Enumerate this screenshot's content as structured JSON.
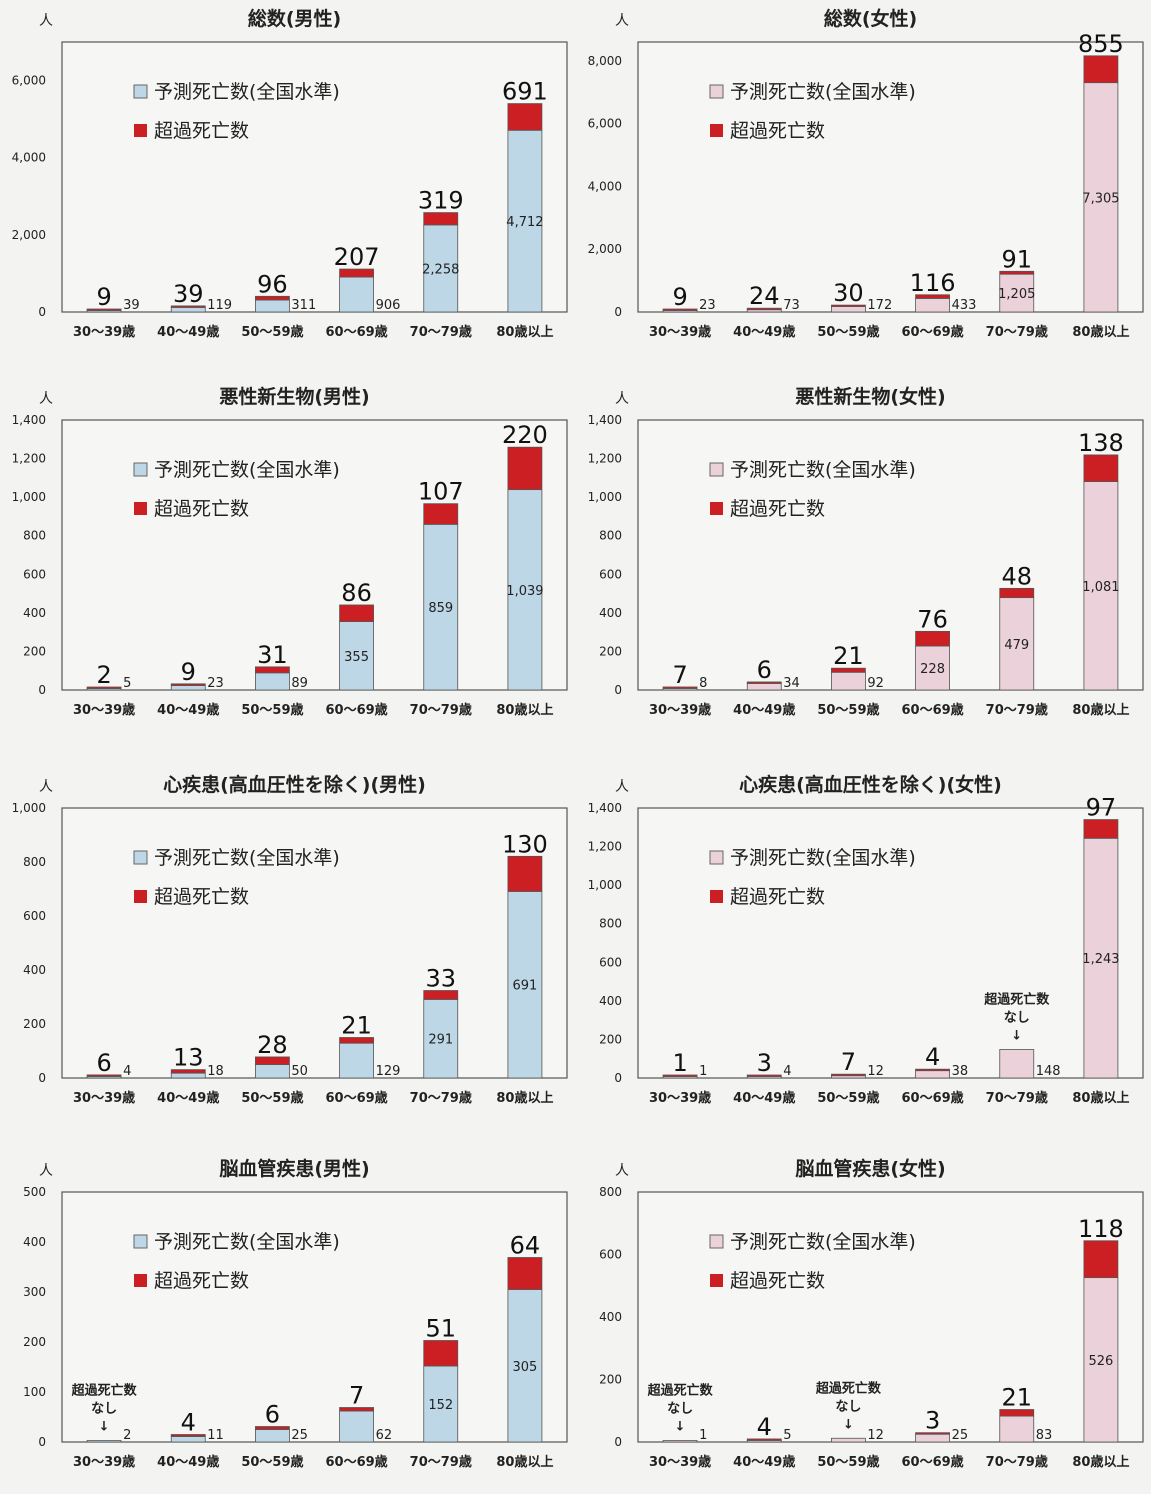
{
  "colors": {
    "excess": "#cc1f24",
    "male_predicted": "#bdd7e7",
    "female_predicted": "#ebd1da",
    "frame": "#555555",
    "background": "#f3f3f1"
  },
  "legend": {
    "predicted": "予測死亡数(全国水準)",
    "excess": "超過死亡数"
  },
  "unit_label": "人",
  "note": {
    "line1": "超過死亡数",
    "line2": "なし",
    "arrow": "↓"
  },
  "chart_data": [
    {
      "type": "bar",
      "stacked": true,
      "title": "総数(男性)",
      "gender": "male",
      "categories": [
        "30〜39歳",
        "40〜49歳",
        "50〜59歳",
        "60〜69歳",
        "70〜79歳",
        "80歳以上"
      ],
      "ylim": [
        0,
        7000
      ],
      "yticks": [
        0,
        2000,
        4000,
        6000
      ],
      "ytick_labels": [
        "0",
        "2,000",
        "4,000",
        "6,000"
      ],
      "series": [
        {
          "name": "予測死亡数(全国水準)",
          "values": [
            39,
            119,
            311,
            906,
            2258,
            4712
          ]
        },
        {
          "name": "超過死亡数",
          "values": [
            9,
            39,
            96,
            207,
            319,
            691
          ]
        }
      ],
      "predicted_labels": [
        "39",
        "119",
        "311",
        "906",
        "2,258",
        "4,712"
      ],
      "excess_labels": [
        "9",
        "39",
        "96",
        "207",
        "319",
        "691"
      ],
      "no_excess_notes": []
    },
    {
      "type": "bar",
      "stacked": true,
      "title": "総数(女性)",
      "gender": "female",
      "categories": [
        "30〜39歳",
        "40〜49歳",
        "50〜59歳",
        "60〜69歳",
        "70〜79歳",
        "80歳以上"
      ],
      "ylim": [
        0,
        8600
      ],
      "yticks": [
        0,
        2000,
        4000,
        6000,
        8000
      ],
      "ytick_labels": [
        "0",
        "2,000",
        "4,000",
        "6,000",
        "8,000"
      ],
      "series": [
        {
          "name": "予測死亡数(全国水準)",
          "values": [
            23,
            73,
            172,
            433,
            1205,
            7305
          ]
        },
        {
          "name": "超過死亡数",
          "values": [
            9,
            24,
            30,
            116,
            91,
            855
          ]
        }
      ],
      "predicted_labels": [
        "23",
        "73",
        "172",
        "433",
        "1,205",
        "7,305"
      ],
      "excess_labels": [
        "9",
        "24",
        "30",
        "116",
        "91",
        "855"
      ],
      "no_excess_notes": []
    },
    {
      "type": "bar",
      "stacked": true,
      "title": "悪性新生物(男性)",
      "gender": "male",
      "categories": [
        "30〜39歳",
        "40〜49歳",
        "50〜59歳",
        "60〜69歳",
        "70〜79歳",
        "80歳以上"
      ],
      "ylim": [
        0,
        1400
      ],
      "yticks": [
        0,
        200,
        400,
        600,
        800,
        1000,
        1200,
        1400
      ],
      "ytick_labels": [
        "0",
        "200",
        "400",
        "600",
        "800",
        "1,000",
        "1,200",
        "1,400"
      ],
      "series": [
        {
          "name": "予測死亡数(全国水準)",
          "values": [
            5,
            23,
            89,
            355,
            859,
            1039
          ]
        },
        {
          "name": "超過死亡数",
          "values": [
            2,
            9,
            31,
            86,
            107,
            220
          ]
        }
      ],
      "predicted_labels": [
        "5",
        "23",
        "89",
        "355",
        "859",
        "1,039"
      ],
      "excess_labels": [
        "2",
        "9",
        "31",
        "86",
        "107",
        "220"
      ],
      "no_excess_notes": []
    },
    {
      "type": "bar",
      "stacked": true,
      "title": "悪性新生物(女性)",
      "gender": "female",
      "categories": [
        "30〜39歳",
        "40〜49歳",
        "50〜59歳",
        "60〜69歳",
        "70〜79歳",
        "80歳以上"
      ],
      "ylim": [
        0,
        1400
      ],
      "yticks": [
        0,
        200,
        400,
        600,
        800,
        1000,
        1200,
        1400
      ],
      "ytick_labels": [
        "0",
        "200",
        "400",
        "600",
        "800",
        "1,000",
        "1,200",
        "1,400"
      ],
      "series": [
        {
          "name": "予測死亡数(全国水準)",
          "values": [
            8,
            34,
            92,
            228,
            479,
            1081
          ]
        },
        {
          "name": "超過死亡数",
          "values": [
            7,
            6,
            21,
            76,
            48,
            138
          ]
        }
      ],
      "predicted_labels": [
        "8",
        "34",
        "92",
        "228",
        "479",
        "1,081"
      ],
      "excess_labels": [
        "7",
        "6",
        "21",
        "76",
        "48",
        "138"
      ],
      "no_excess_notes": []
    },
    {
      "type": "bar",
      "stacked": true,
      "title": "心疾患(高血圧性を除く)(男性)",
      "gender": "male",
      "categories": [
        "30〜39歳",
        "40〜49歳",
        "50〜59歳",
        "60〜69歳",
        "70〜79歳",
        "80歳以上"
      ],
      "ylim": [
        0,
        1000
      ],
      "yticks": [
        0,
        200,
        400,
        600,
        800,
        1000
      ],
      "ytick_labels": [
        "0",
        "200",
        "400",
        "600",
        "800",
        "1,000"
      ],
      "series": [
        {
          "name": "予測死亡数(全国水準)",
          "values": [
            4,
            18,
            50,
            129,
            291,
            691
          ]
        },
        {
          "name": "超過死亡数",
          "values": [
            6,
            13,
            28,
            21,
            33,
            130
          ]
        }
      ],
      "predicted_labels": [
        "4",
        "18",
        "50",
        "129",
        "291",
        "691"
      ],
      "excess_labels": [
        "6",
        "13",
        "28",
        "21",
        "33",
        "130"
      ],
      "no_excess_notes": []
    },
    {
      "type": "bar",
      "stacked": true,
      "title": "心疾患(高血圧性を除く)(女性)",
      "gender": "female",
      "categories": [
        "30〜39歳",
        "40〜49歳",
        "50〜59歳",
        "60〜69歳",
        "70〜79歳",
        "80歳以上"
      ],
      "ylim": [
        0,
        1400
      ],
      "yticks": [
        0,
        200,
        400,
        600,
        800,
        1000,
        1200,
        1400
      ],
      "ytick_labels": [
        "0",
        "200",
        "400",
        "600",
        "800",
        "1,000",
        "1,200",
        "1,400"
      ],
      "series": [
        {
          "name": "予測死亡数(全国水準)",
          "values": [
            1,
            4,
            12,
            38,
            148,
            1243
          ]
        },
        {
          "name": "超過死亡数",
          "values": [
            1,
            3,
            7,
            4,
            0,
            97
          ]
        }
      ],
      "predicted_labels": [
        "1",
        "4",
        "12",
        "38",
        "148",
        "1,243"
      ],
      "excess_labels": [
        "1",
        "3",
        "7",
        "4",
        "",
        "97"
      ],
      "no_excess_notes": [
        4
      ]
    },
    {
      "type": "bar",
      "stacked": true,
      "title": "脳血管疾患(男性)",
      "gender": "male",
      "categories": [
        "30〜39歳",
        "40〜49歳",
        "50〜59歳",
        "60〜69歳",
        "70〜79歳",
        "80歳以上"
      ],
      "ylim": [
        0,
        500
      ],
      "yticks": [
        0,
        100,
        200,
        300,
        400,
        500
      ],
      "ytick_labels": [
        "0",
        "100",
        "200",
        "300",
        "400",
        "500"
      ],
      "series": [
        {
          "name": "予測死亡数(全国水準)",
          "values": [
            2,
            11,
            25,
            62,
            152,
            305
          ]
        },
        {
          "name": "超過死亡数",
          "values": [
            0,
            4,
            6,
            7,
            51,
            64
          ]
        }
      ],
      "predicted_labels": [
        "2",
        "11",
        "25",
        "62",
        "152",
        "305"
      ],
      "excess_labels": [
        "",
        "4",
        "6",
        "7",
        "51",
        "64"
      ],
      "no_excess_notes": [
        0
      ]
    },
    {
      "type": "bar",
      "stacked": true,
      "title": "脳血管疾患(女性)",
      "gender": "female",
      "categories": [
        "30〜39歳",
        "40〜49歳",
        "50〜59歳",
        "60〜69歳",
        "70〜79歳",
        "80歳以上"
      ],
      "ylim": [
        0,
        800
      ],
      "yticks": [
        0,
        200,
        400,
        600,
        800
      ],
      "ytick_labels": [
        "0",
        "200",
        "400",
        "600",
        "800"
      ],
      "series": [
        {
          "name": "予測死亡数(全国水準)",
          "values": [
            1,
            5,
            12,
            25,
            83,
            526
          ]
        },
        {
          "name": "超過死亡数",
          "values": [
            0,
            4,
            0,
            3,
            21,
            118
          ]
        }
      ],
      "predicted_labels": [
        "1",
        "5",
        "12",
        "25",
        "83",
        "526"
      ],
      "excess_labels": [
        "",
        "4",
        "",
        "3",
        "21",
        "118"
      ],
      "no_excess_notes": [
        0,
        2
      ]
    }
  ]
}
